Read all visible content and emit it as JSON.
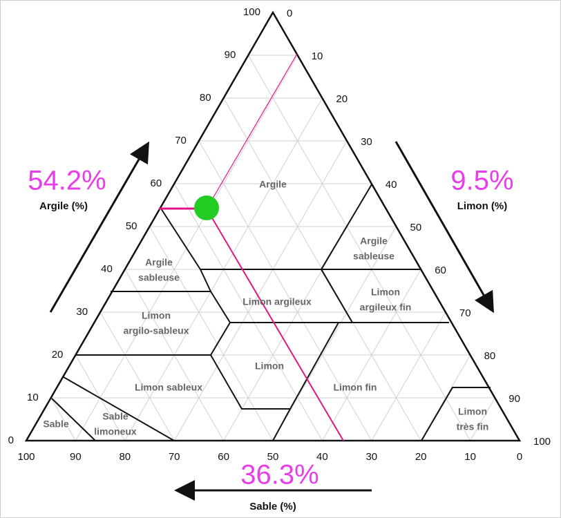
{
  "clay_value": "54.2%",
  "clay_axis": "Argile (%)",
  "silt_value": "9.5%",
  "silt_axis": "Limon (%)",
  "sand_value": "36.3%",
  "sand_axis": "Sable (%)",
  "clay_ticks": [
    "0",
    "10",
    "20",
    "30",
    "40",
    "50",
    "60",
    "70",
    "80",
    "90",
    "100"
  ],
  "silt_ticks": [
    "0",
    "10",
    "20",
    "30",
    "40",
    "50",
    "60",
    "70",
    "80",
    "90",
    "100"
  ],
  "sand_ticks": [
    "0",
    "10",
    "20",
    "30",
    "40",
    "50",
    "60",
    "70",
    "80",
    "90",
    "100"
  ],
  "regions": [
    {
      "lines": [
        "Argile"
      ]
    },
    {
      "lines": [
        "Argile",
        "sableuse"
      ]
    },
    {
      "lines": [
        "Argile",
        "sableuse"
      ]
    },
    {
      "lines": [
        "Limon argileux"
      ]
    },
    {
      "lines": [
        "Limon",
        "argileux fin"
      ]
    },
    {
      "lines": [
        "Limon",
        "argilo-sableux"
      ]
    },
    {
      "lines": [
        "Limon"
      ]
    },
    {
      "lines": [
        "Limon sableux"
      ]
    },
    {
      "lines": [
        "Limon fin"
      ]
    },
    {
      "lines": [
        "Sable"
      ]
    },
    {
      "lines": [
        "Sable",
        "limoneux"
      ]
    },
    {
      "lines": [
        "Limon",
        "très fin"
      ]
    }
  ]
}
